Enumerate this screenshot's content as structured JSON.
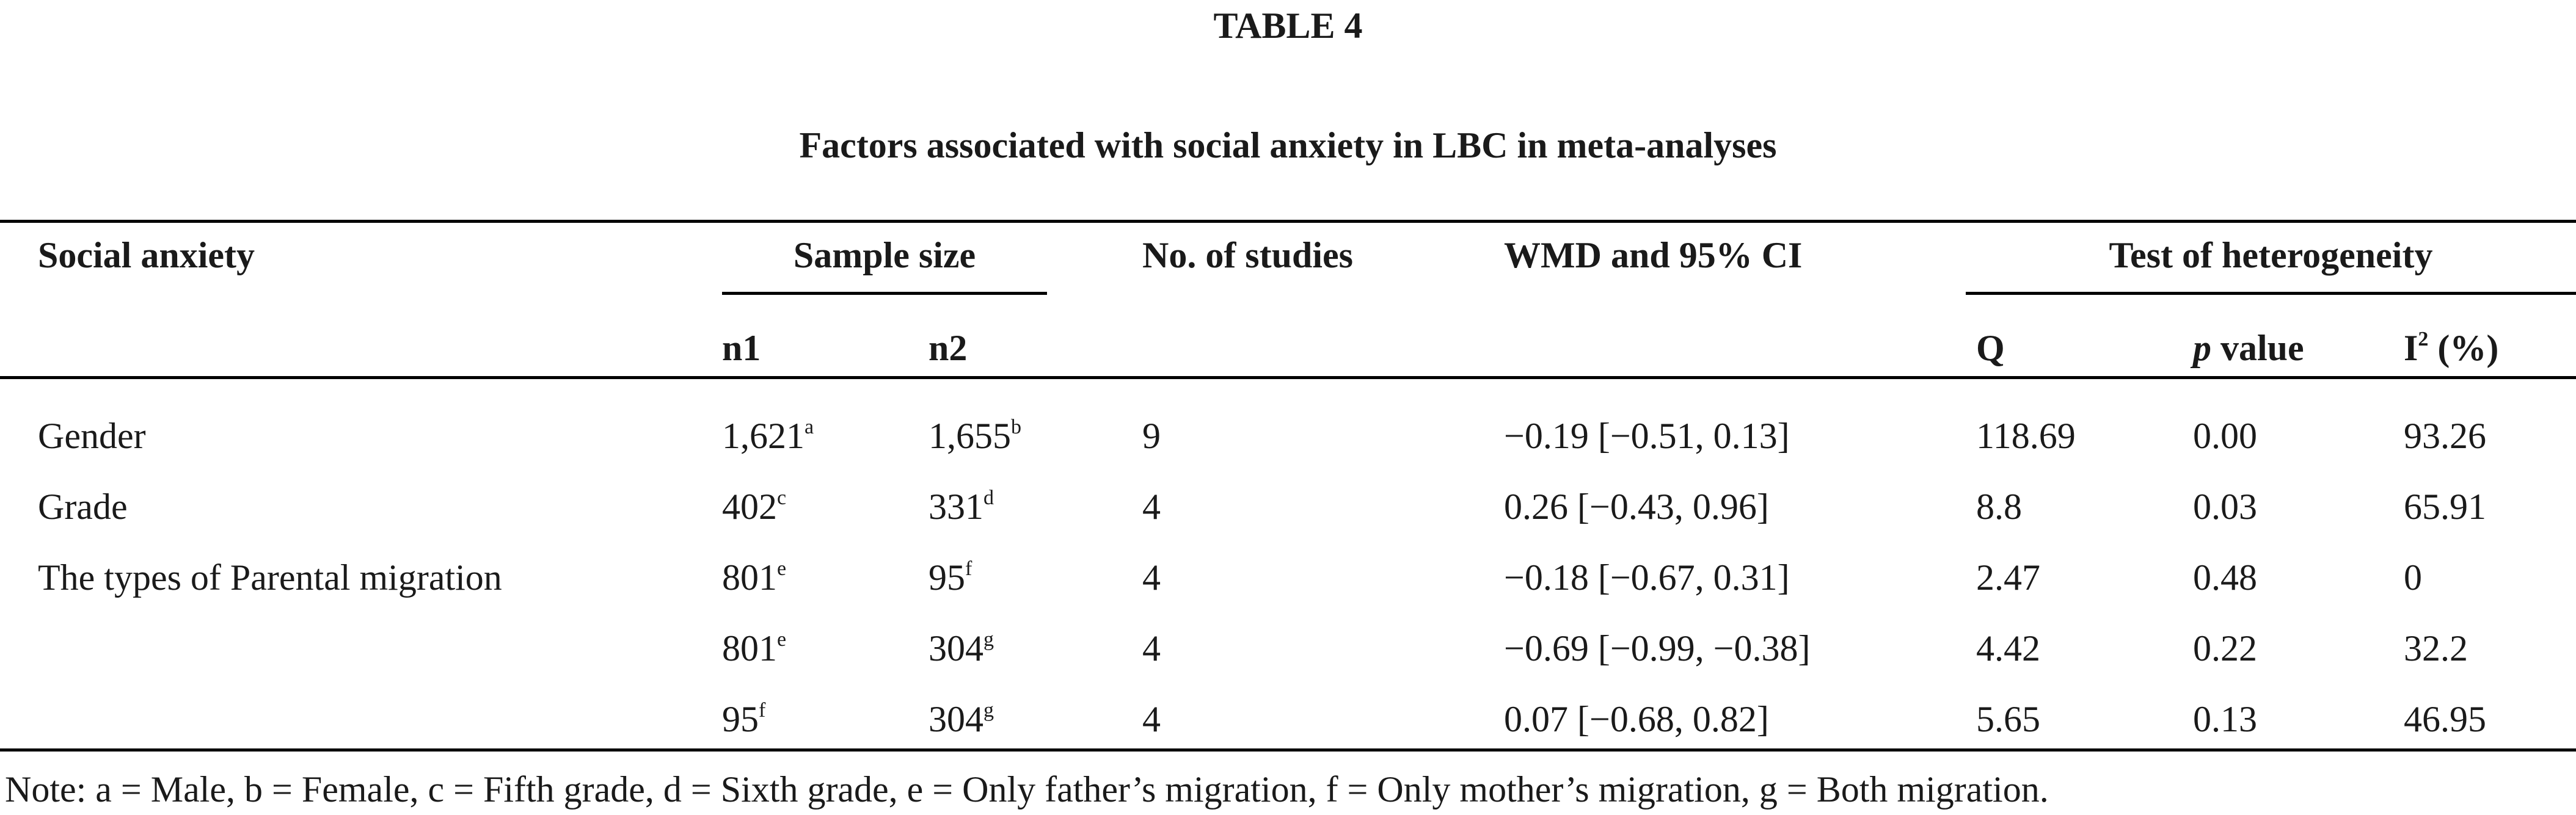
{
  "table_label": "TABLE 4",
  "caption": "Factors associated with social anxiety in LBC in meta-analyses",
  "headers": {
    "col_factor": "Social anxiety",
    "group_sample": "Sample size",
    "n1": "n1",
    "n2": "n2",
    "col_studies": "No. of studies",
    "col_wmd": "WMD and 95% CI",
    "group_hetero": "Test of heterogeneity",
    "q": "Q",
    "p_italic": "p",
    "p_rest": " value",
    "i2_base": "I",
    "i2_sup": "2",
    "i2_rest": " (%)"
  },
  "rows": [
    {
      "factor": "Gender",
      "n1": "1,621",
      "n1_sup": "a",
      "n2": "1,655",
      "n2_sup": "b",
      "studies": "9",
      "wmd": "−0.19 [−0.51, 0.13]",
      "q": "118.69",
      "p": "0.00",
      "i2": "93.26"
    },
    {
      "factor": "Grade",
      "n1": "402",
      "n1_sup": "c",
      "n2": "331",
      "n2_sup": "d",
      "studies": "4",
      "wmd": "0.26 [−0.43, 0.96]",
      "q": "8.8",
      "p": "0.03",
      "i2": "65.91"
    },
    {
      "factor": "The types of Parental migration",
      "n1": "801",
      "n1_sup": "e",
      "n2": "95",
      "n2_sup": "f",
      "studies": "4",
      "wmd": "−0.18 [−0.67, 0.31]",
      "q": "2.47",
      "p": "0.48",
      "i2": "0"
    },
    {
      "factor": "",
      "n1": "801",
      "n1_sup": "e",
      "n2": "304",
      "n2_sup": "g",
      "studies": "4",
      "wmd": "−0.69 [−0.99, −0.38]",
      "q": "4.42",
      "p": "0.22",
      "i2": "32.2"
    },
    {
      "factor": "",
      "n1": "95",
      "n1_sup": "f",
      "n2": "304",
      "n2_sup": "g",
      "studies": "4",
      "wmd": "0.07 [−0.68, 0.82]",
      "q": "5.65",
      "p": "0.13",
      "i2": "46.95"
    }
  ],
  "note": "Note: a = Male, b = Female, c = Fifth grade, d = Sixth grade, e = Only father’s migration, f = Only mother’s migration, g = Both migration."
}
